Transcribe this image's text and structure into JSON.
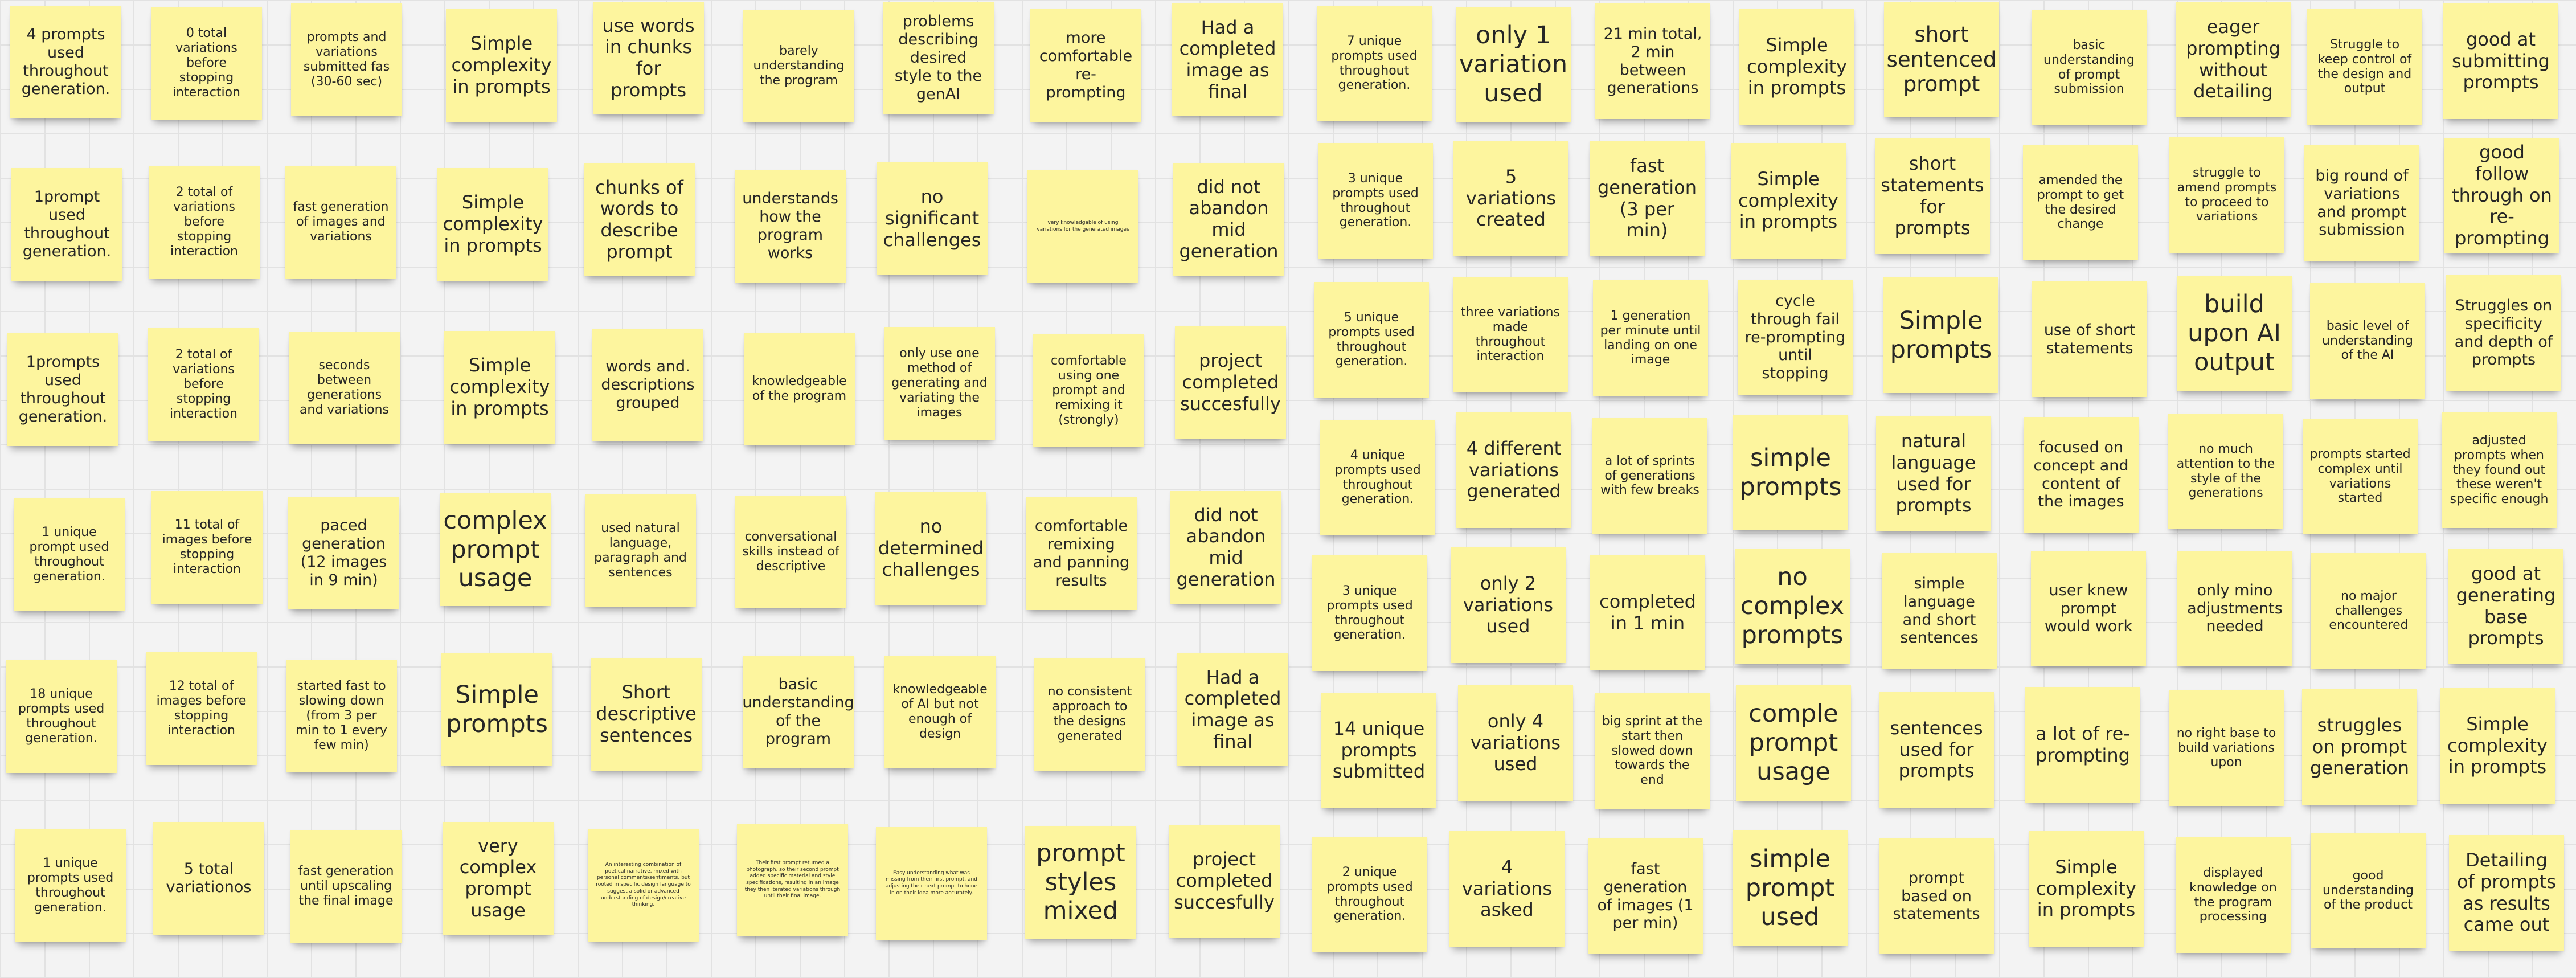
{
  "board": {
    "note_color": "#fdf59e",
    "left_cluster": {
      "columns": [
        [
          "4 prompts used throughout generation.",
          "1prompt used throughout generation.",
          "1prompts used throughout generation.",
          "1 unique prompt used throughout generation.",
          "18 unique prompts used throughout generation.",
          "1 unique prompts used throughout generation."
        ],
        [
          "0 total variations before stopping interaction",
          "2 total of variations before stopping interaction",
          "2 total of variations before stopping interaction",
          "11 total of images before stopping interaction",
          "12 total of images before stopping interaction",
          "5 total variationos"
        ],
        [
          "prompts and variations submitted fas (30-60 sec)",
          "fast generation of images and variations",
          "seconds between generations and variations",
          "paced generation (12 images in 9 min)",
          "started fast to slowing down (from 3 per min to 1 every few min)",
          "fast generation until upscaling the final image"
        ],
        [
          "Simple complexity in prompts",
          "Simple complexity in prompts",
          "Simple complexity in prompts",
          "complex prompt usage",
          "Simple prompts",
          "very complex prompt usage"
        ],
        [
          "use words in chunks for prompts",
          "chunks of words to describe prompt",
          "words and. descriptions grouped",
          "used natural language, paragraph and sentences",
          "Short descriptive sentences",
          "An interesting combination of poetical narrative, mixed with personal comments/sentiments, but rooted in specific design language to suggest a solid or advanced understanding of design/creative thinking."
        ],
        [
          "barely understanding the program",
          "understands how the program works",
          "knowledgeable of the program",
          "conversational skills instead of descriptive",
          "basic understanding of the program",
          "Their first prompt returned a photograph, so their second prompt added specific material and style specifications, resulting in an image they then iterated variations through until their final image."
        ],
        [
          "problems describing desired style to the genAI",
          "no significant challenges",
          "only use one method of generating and variating the images",
          "no determined challenges",
          "knowledgeable of AI but not enough of design",
          "Easy understanding what was missing from their first prompt, and adjusting their next prompt to hone in on their idea more accurately."
        ],
        [
          "more comfortable re-prompting",
          "very knowledgable of using variations for the generated images",
          "comfortable using one prompt and remixing it (strongly)",
          "comfortable remixing and panning results",
          "no consistent approach to the designs generated",
          "prompt styles mixed"
        ],
        [
          "Had a completed image as final",
          "did not abandon mid generation",
          "project completed succesfully",
          "did not abandon mid generation",
          "Had a completed image as final",
          "project completed succesfully"
        ]
      ]
    },
    "right_cluster": {
      "columns": [
        [
          "7 unique prompts used throughout generation.",
          "3 unique prompts used throughout generation.",
          "5 unique prompts used throughout generation.",
          "4 unique prompts used throughout generation.",
          "3 unique prompts used throughout generation.",
          "14 unique prompts submitted",
          "2 unique prompts used throughout generation."
        ],
        [
          "only 1 variation used",
          "5 variations created",
          "three variations made throughout interaction",
          "4 different variations generated",
          "only 2 variations used",
          "only 4 variations used",
          "4 variations asked"
        ],
        [
          "21 min total, 2 min between generations",
          "fast generation (3 per min)",
          "1 generation per minute until landing on one image",
          "a lot of sprints of generations with few breaks",
          "completed in 1 min",
          "big sprint at the start then slowed down towards the end",
          "fast generation of images (1 per min)"
        ],
        [
          "Simple complexity in prompts",
          "Simple complexity in prompts",
          "cycle through fail re-prompting until stopping",
          "simple prompts",
          "no complex prompts",
          "comple prompt usage",
          "simple prompt used"
        ],
        [
          "short sentenced prompt",
          "short statements for prompts",
          "Simple prompts",
          "natural language used for prompts",
          "simple language and short sentences",
          "sentences used for prompts",
          "prompt based on statements"
        ],
        [
          "basic understanding of prompt submission",
          "amended the prompt to get the desired change",
          "use of short statements",
          "focused on concept and content of the images",
          "user knew prompt would work",
          "a lot of re-prompting",
          "Simple complexity in prompts"
        ],
        [
          "eager prompting without detailing",
          "struggle to amend prompts to proceed to variations",
          "build upon AI output",
          "no much attention to the style of the generations",
          "only mino adjustments needed",
          "no right base to build variations upon",
          "displayed knowledge on the program processing"
        ],
        [
          "Struggle to keep control of the design and output",
          "big round of variations and prompt submission",
          "basic level of understanding of the AI",
          "prompts started complex until variations started",
          "no major challenges encountered",
          "struggles on prompt generation",
          "good understanding of the product"
        ],
        [
          "good at submitting prompts",
          "good follow through on re-prompting",
          "Struggles on specificity and depth of prompts",
          "adjusted prompts when they found out these weren't specific enough",
          "good at generating base prompts",
          "Simple complexity in prompts",
          "Detailing of prompts as results came out"
        ]
      ]
    }
  }
}
